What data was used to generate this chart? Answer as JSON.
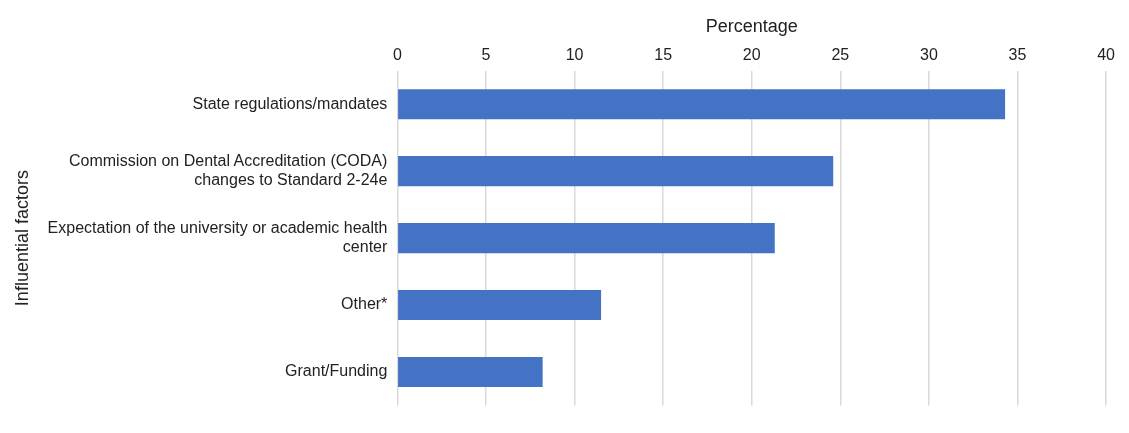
{
  "chart_data": {
    "type": "bar",
    "orientation": "horizontal",
    "xlabel": "Percentage",
    "ylabel": "Influential factors",
    "categories": [
      "State regulations/mandates",
      "Commission on Dental Accreditation (CODA) changes to Standard 2-24e",
      "Expectation of the university or academic health center",
      "Other*",
      "Grant/Funding"
    ],
    "values": [
      34.3,
      24.6,
      21.3,
      11.5,
      8.2
    ],
    "color": "#4472c4",
    "xlim": [
      0,
      40
    ],
    "xticks": [
      0,
      5,
      10,
      15,
      20,
      25,
      30,
      35,
      40
    ],
    "grid": "x",
    "legend": false
  }
}
